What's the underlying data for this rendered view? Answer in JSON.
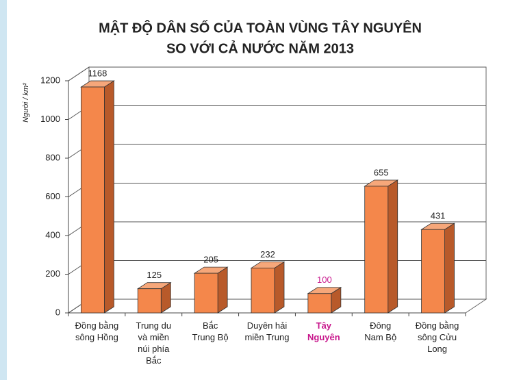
{
  "chart_data": {
    "type": "bar3d",
    "title": [
      "MẬT ĐỘ DÂN SỐ CỦA TOÀN VÙNG TÂY NGUYÊN",
      "SO VỚI CẢ NƯỚC NĂM 2013"
    ],
    "y_label": "Người / km²",
    "categories": [
      "Đồng bằng\nsông Hồng",
      "Trung du\nvà miền\nnúi phía\nBắc",
      "Bắc\nTrung Bộ",
      "Duyên hải\nmiền Trung",
      "Tây\nNguyên",
      "Đông\nNam Bộ",
      "Đồng bằng\nsông Cửu\nLong"
    ],
    "values": [
      1168,
      125,
      205,
      232,
      100,
      655,
      431
    ],
    "color": "#f4874b",
    "highlight_index": 4,
    "highlight_color": "#c8178c",
    "ylim": [
      0,
      1200
    ],
    "yticks": [
      0,
      200,
      400,
      600,
      800,
      1000,
      1200
    ],
    "grid": true
  }
}
